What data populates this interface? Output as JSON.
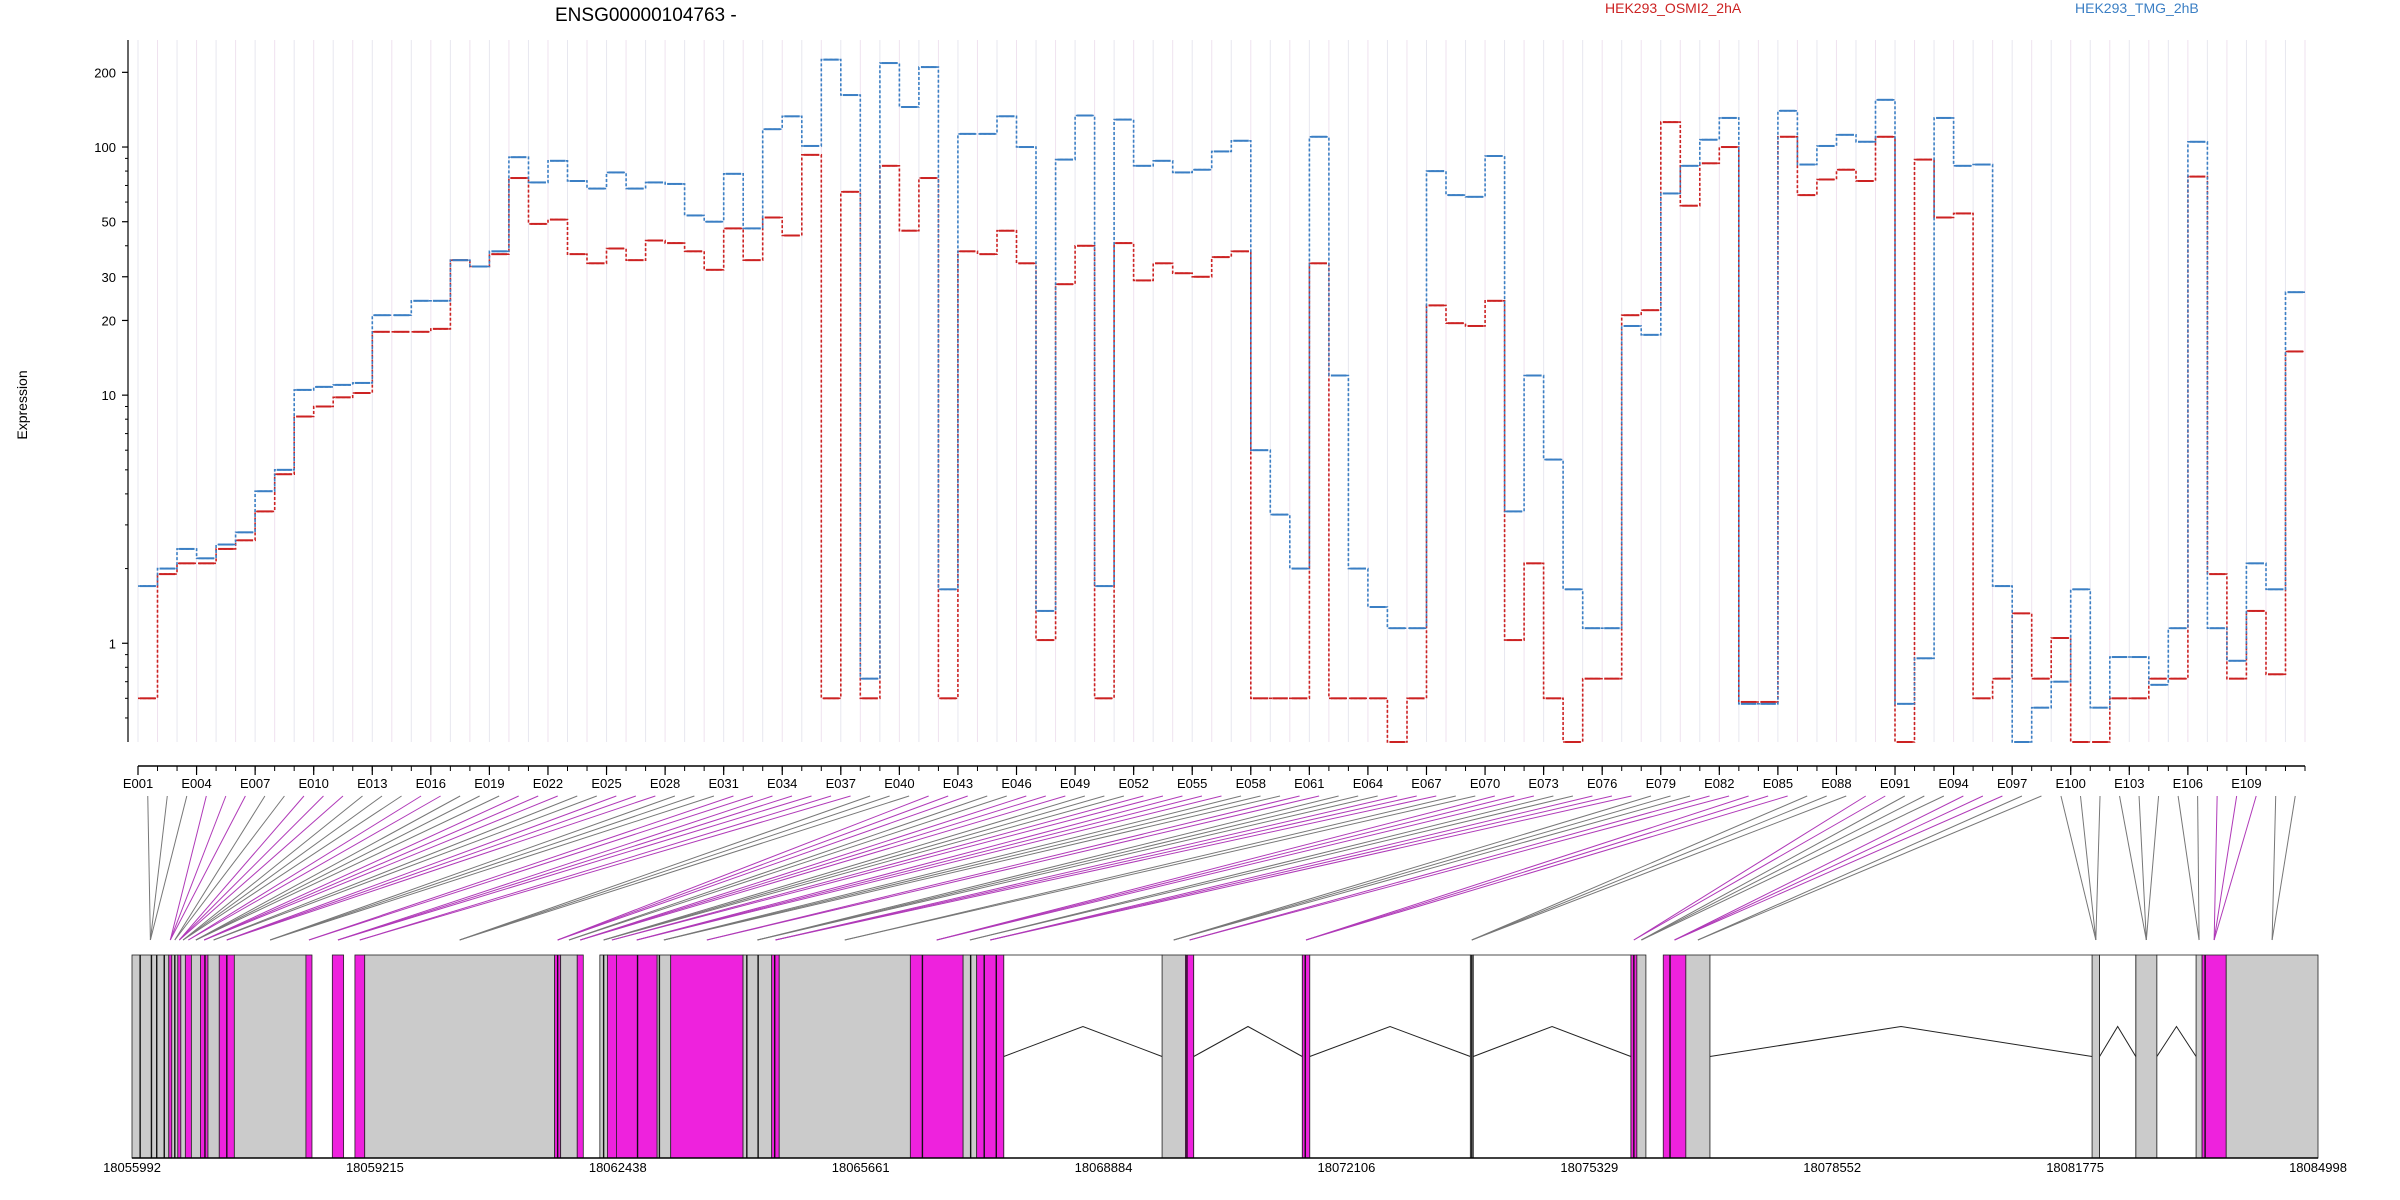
{
  "chart_data": {
    "type": "line",
    "title": "ENSG00000104763 -",
    "ylabel": "Expression",
    "y_scale": "log",
    "ylim": [
      0.4,
      270
    ],
    "y_ticks": [
      1,
      10,
      20,
      30,
      50,
      100,
      200
    ],
    "exon_ticks": [
      "E001",
      "E004",
      "E007",
      "E010",
      "E013",
      "E016",
      "E019",
      "E022",
      "E025",
      "E028",
      "E031",
      "E034",
      "E037",
      "E040",
      "E043",
      "E046",
      "E049",
      "E052",
      "E055",
      "E058",
      "E061",
      "E064",
      "E067",
      "E070",
      "E073",
      "E076",
      "E079",
      "E082",
      "E085",
      "E088",
      "E091",
      "E094",
      "E097",
      "E100",
      "E103",
      "E106",
      "E109"
    ],
    "genomic_ticks": [
      "18055992",
      "18059215",
      "18062438",
      "18065661",
      "18068884",
      "18072106",
      "18075329",
      "18078552",
      "18081775",
      "18084998"
    ],
    "genomic_range": [
      18055992,
      18084998
    ],
    "legend_position": "top",
    "series": [
      {
        "name": "HEK293_OSMI2_2hA",
        "color": "#cc2222",
        "values": [
          0.6,
          1.9,
          2.1,
          2.1,
          2.4,
          2.6,
          3.4,
          4.8,
          8.2,
          9.0,
          9.8,
          10.2,
          18,
          18,
          18,
          18.5,
          35,
          33,
          37,
          75,
          49,
          51,
          37,
          34,
          39,
          35,
          42,
          41,
          38,
          32,
          47,
          35,
          52,
          44,
          93,
          0.6,
          66,
          0.6,
          84,
          46,
          75,
          0.6,
          38,
          37,
          46,
          34,
          1.03,
          28,
          40,
          0.6,
          41,
          29,
          34,
          31,
          30,
          36,
          38,
          0.6,
          0.6,
          0.6,
          34,
          0.6,
          0.6,
          0.6,
          0.4,
          0.6,
          23,
          19.5,
          19,
          24,
          1.03,
          2.1,
          0.6,
          0.4,
          0.72,
          0.72,
          21,
          22,
          126,
          58,
          86,
          100,
          0.58,
          0.58,
          110,
          64,
          74,
          81,
          73,
          110,
          0.4,
          89,
          52,
          54,
          0.6,
          0.72,
          1.32,
          0.72,
          1.05,
          0.4,
          0.4,
          0.6,
          0.6,
          0.72,
          0.72,
          76,
          1.9,
          0.72,
          1.35,
          0.75,
          15
        ]
      },
      {
        "name": "HEK293_TMG_2hB",
        "color": "#3b7fc4",
        "values": [
          1.7,
          2.0,
          2.4,
          2.2,
          2.5,
          2.8,
          4.1,
          5.0,
          10.5,
          10.8,
          11,
          11.2,
          21,
          21,
          24,
          24,
          35,
          33,
          38,
          91,
          72,
          88,
          73,
          68,
          79,
          68,
          72,
          71,
          53,
          50,
          78,
          47,
          118,
          133,
          101,
          225,
          162,
          0.72,
          218,
          145,
          210,
          1.65,
          113,
          113,
          133,
          100,
          1.35,
          89,
          134,
          1.7,
          129,
          84,
          88,
          79,
          81,
          96,
          106,
          6.0,
          3.3,
          2.0,
          110,
          12,
          2.0,
          1.4,
          1.15,
          1.15,
          80,
          64,
          63,
          92,
          3.4,
          12,
          5.5,
          1.65,
          1.15,
          1.15,
          19,
          17.5,
          65,
          84,
          107,
          131,
          0.57,
          0.57,
          140,
          85,
          101,
          112,
          105,
          155,
          0.57,
          0.87,
          131,
          84,
          85,
          1.7,
          0.4,
          0.55,
          0.7,
          1.65,
          0.55,
          0.88,
          0.88,
          0.68,
          1.15,
          105,
          1.15,
          0.85,
          2.1,
          1.65,
          26
        ]
      }
    ]
  }
}
